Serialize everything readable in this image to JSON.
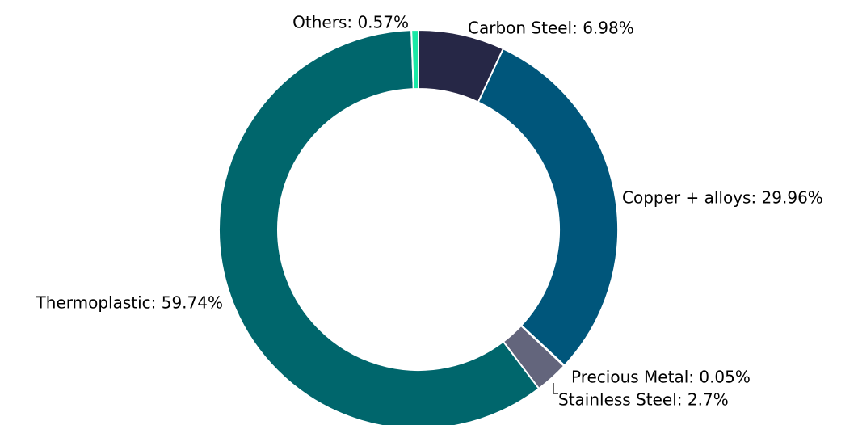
{
  "chart_data": {
    "type": "pie",
    "style": "donut",
    "title": "",
    "slices": [
      {
        "label": "Carbon Steel: 6.98%",
        "name": "Carbon Steel",
        "value": 6.98,
        "color": "#262746"
      },
      {
        "label": "Copper + alloys: 29.96%",
        "name": "Copper + alloys",
        "value": 29.96,
        "color": "#00567b"
      },
      {
        "label": "Precious Metal: 0.05%",
        "name": "Precious Metal",
        "value": 0.05,
        "color": "#4d7a94"
      },
      {
        "label": "Stainless Steel: 2.7%",
        "name": "Stainless Steel",
        "value": 2.7,
        "color": "#63657c"
      },
      {
        "label": "Thermoplastic: 59.74%",
        "name": "Thermoplastic",
        "value": 59.74,
        "color": "#00666c"
      },
      {
        "label": "Others: 0.57%",
        "name": "Others",
        "value": 0.57,
        "color": "#19e8a6"
      }
    ],
    "legend": "none"
  }
}
